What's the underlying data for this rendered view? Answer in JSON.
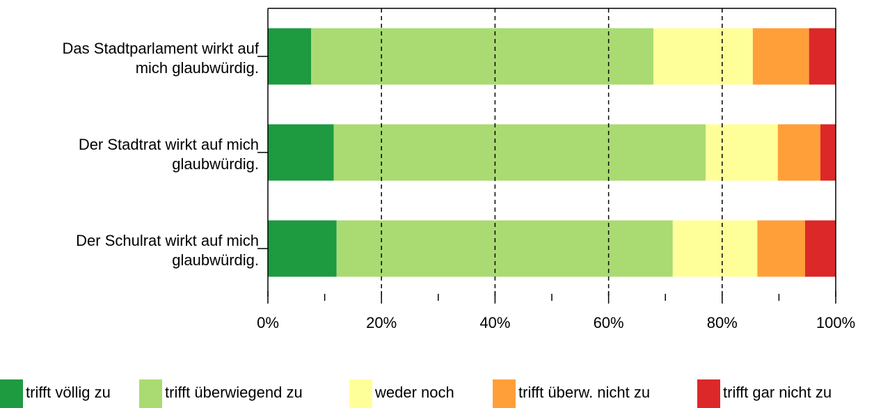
{
  "chart_data": {
    "type": "stacked-bar-horizontal",
    "categories": [
      [
        "Das Stadtparlament wirkt auf",
        "mich glaubwürdig."
      ],
      [
        "Der Stadtrat wirkt auf mich",
        "glaubwürdig."
      ],
      [
        "Der Schulrat wirkt auf mich",
        "glaubwürdig."
      ]
    ],
    "series": [
      {
        "name": "trifft völlig zu",
        "color": "#1e9a41",
        "values": [
          7.6,
          11.6,
          12.1
        ]
      },
      {
        "name": "trifft überwiegend zu",
        "color": "#a9db72",
        "values": [
          60.3,
          65.5,
          59.2
        ]
      },
      {
        "name": "weder noch",
        "color": "#ffff99",
        "values": [
          17.5,
          12.7,
          14.9
        ]
      },
      {
        "name": "trifft überw. nicht zu",
        "color": "#ff9f3a",
        "values": [
          9.9,
          7.5,
          8.4
        ]
      },
      {
        "name": "trifft gar nicht zu",
        "color": "#dc2828",
        "values": [
          4.7,
          2.7,
          5.4
        ]
      }
    ],
    "xlim": [
      0,
      100
    ],
    "xticks": [
      {
        "value": 0,
        "label": "0%"
      },
      {
        "value": 20,
        "label": "20%"
      },
      {
        "value": 40,
        "label": "40%"
      },
      {
        "value": 60,
        "label": "60%"
      },
      {
        "value": 80,
        "label": "80%"
      },
      {
        "value": 100,
        "label": "100%"
      }
    ],
    "minor_xticks": [
      10,
      30,
      50,
      70,
      90
    ],
    "grid": true,
    "legend": "bottom"
  }
}
